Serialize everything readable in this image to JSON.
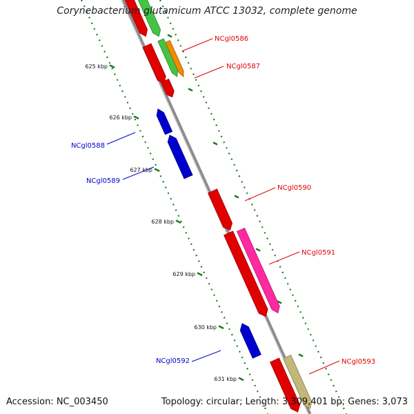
{
  "title": "Corynebacterium glutamicum ATCC 13032, complete genome",
  "footer": {
    "accession": "Accession: NC_003450",
    "summary": "Topology: circular; Length: 3,309,401 bp; Genes: 3,073"
  },
  "colors": {
    "forward": "#e00000",
    "reverse": "#0000cc",
    "backbone": "#8c8c8c",
    "ticks": "#1a7a1a",
    "green": "#44c444",
    "orange": "#f08c00",
    "pink": "#ff2aa0",
    "khaki": "#c4b878"
  },
  "kbp_ticks": [
    {
      "label": "625 kbp"
    },
    {
      "label": "626 kbp"
    },
    {
      "label": "627 kbp"
    },
    {
      "label": "628 kbp"
    },
    {
      "label": "629 kbp"
    },
    {
      "label": "630 kbp"
    },
    {
      "label": "631 kbp"
    }
  ],
  "genes": [
    {
      "label": "NCgl0586",
      "strand": "forward",
      "color": "#e00000"
    },
    {
      "label": "NCgl0587",
      "strand": "forward",
      "color": "#e00000"
    },
    {
      "label": "NCgl0588",
      "strand": "reverse",
      "color": "#0000cc"
    },
    {
      "label": "NCgl0589",
      "strand": "reverse",
      "color": "#0000cc"
    },
    {
      "label": "NCgl0590",
      "strand": "forward",
      "color": "#e00000"
    },
    {
      "label": "NCgl0591",
      "strand": "forward",
      "color": "#e00000"
    },
    {
      "label": "NCgl0592",
      "strand": "reverse",
      "color": "#0000cc"
    },
    {
      "label": "NCgl0593",
      "strand": "forward",
      "color": "#e00000"
    }
  ]
}
